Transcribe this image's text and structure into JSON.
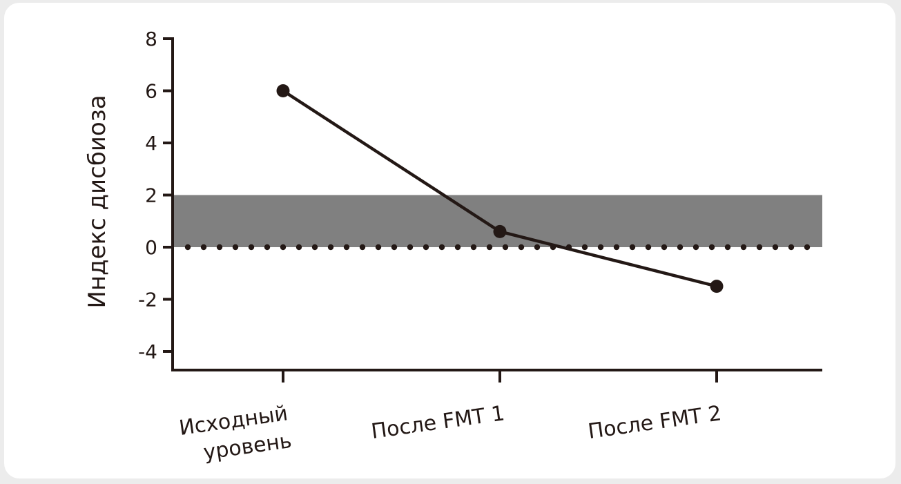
{
  "chart_data": {
    "type": "line",
    "ylabel": "Индекс дисбиоза",
    "xlabel": "",
    "categories": [
      [
        "Исходный",
        "уровень"
      ],
      [
        "После FMT 1"
      ],
      [
        "После FMT 2"
      ]
    ],
    "series": [
      {
        "values": [
          6.0,
          0.6,
          -1.5
        ]
      }
    ],
    "yticks": [
      8,
      6,
      4,
      2,
      0,
      -2,
      -4
    ],
    "ylim": [
      -4.6,
      8
    ],
    "reference_band": {
      "from": 0,
      "to": 2,
      "color": "#808080"
    },
    "reference_line": {
      "value": 0,
      "style": "dotted"
    },
    "grid": false,
    "colors": {
      "ink": "#231815",
      "band": "#808080",
      "background": "#ffffff",
      "frame": "#ececec"
    }
  }
}
